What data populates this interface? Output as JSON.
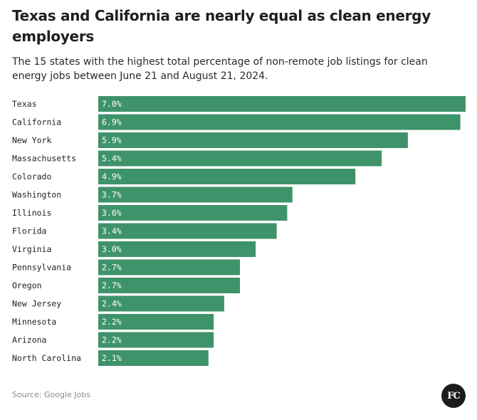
{
  "header": {
    "title": "Texas and California are nearly equal as clean energy employers",
    "subtitle": "The 15 states with the highest total percentage of non-remote job listings for clean energy jobs between June 21 and August 21, 2024."
  },
  "footer": {
    "source": "Source: Google Jobs",
    "logo": "FC"
  },
  "colors": {
    "bar": "#3f936a",
    "bar_text": "#ffffff",
    "logo_bg": "#1c1c1c"
  },
  "chart_data": {
    "type": "bar",
    "orientation": "horizontal",
    "categories": [
      "Texas",
      "California",
      "New York",
      "Massachusetts",
      "Colorado",
      "Washington",
      "Illinois",
      "Florida",
      "Virginia",
      "Pennsylvania",
      "Oregon",
      "New Jersey",
      "Minnesota",
      "Arizona",
      "North Carolina"
    ],
    "values": [
      7.0,
      6.9,
      5.9,
      5.4,
      4.9,
      3.7,
      3.6,
      3.4,
      3.0,
      2.7,
      2.7,
      2.4,
      2.2,
      2.2,
      2.1
    ],
    "value_labels": [
      "7.0%",
      "6.9%",
      "5.9%",
      "5.4%",
      "4.9%",
      "3.7%",
      "3.6%",
      "3.4%",
      "3.0%",
      "2.7%",
      "2.7%",
      "2.4%",
      "2.2%",
      "2.2%",
      "2.1%"
    ],
    "xlim": [
      0,
      7.0
    ],
    "grid": false,
    "legend": "none"
  }
}
